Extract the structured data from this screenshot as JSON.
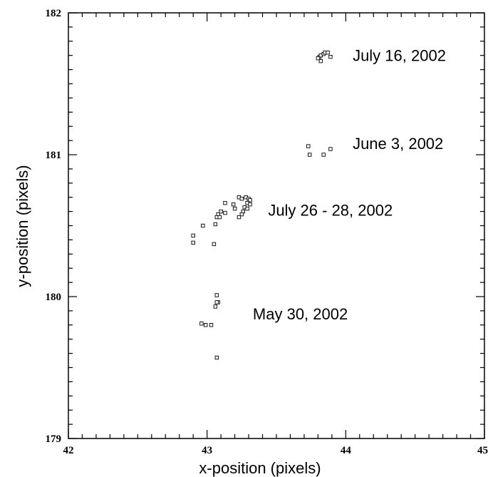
{
  "chart_data": {
    "type": "scatter",
    "title": "",
    "xlabel": "x-position (pixels)",
    "ylabel": "y-position (pixels)",
    "xlim": [
      42,
      45
    ],
    "ylim": [
      179,
      182
    ],
    "x_ticks": [
      42,
      43,
      44,
      45
    ],
    "x_tick_labels": [
      "42",
      "43",
      "44",
      "45"
    ],
    "y_ticks": [
      179,
      180,
      181,
      182
    ],
    "y_tick_labels": [
      "179",
      "180",
      "181",
      "182"
    ],
    "grid": false,
    "marker": "open-square",
    "points": [
      [
        43.81,
        181.69
      ],
      [
        43.82,
        181.7
      ],
      [
        43.84,
        181.71
      ],
      [
        43.85,
        181.72
      ],
      [
        43.87,
        181.72
      ],
      [
        43.89,
        181.69
      ],
      [
        43.82,
        181.66
      ],
      [
        43.8,
        181.68
      ],
      [
        43.73,
        181.06
      ],
      [
        43.74,
        181.0
      ],
      [
        43.84,
        181.0
      ],
      [
        43.89,
        181.04
      ],
      [
        43.23,
        180.7
      ],
      [
        43.25,
        180.69
      ],
      [
        43.28,
        180.7
      ],
      [
        43.3,
        180.69
      ],
      [
        43.31,
        180.68
      ],
      [
        43.29,
        180.66
      ],
      [
        43.31,
        180.65
      ],
      [
        43.27,
        180.63
      ],
      [
        43.29,
        180.62
      ],
      [
        43.26,
        180.6
      ],
      [
        43.25,
        180.58
      ],
      [
        43.23,
        180.56
      ],
      [
        43.19,
        180.65
      ],
      [
        43.2,
        180.62
      ],
      [
        43.13,
        180.66
      ],
      [
        43.1,
        180.6
      ],
      [
        43.13,
        180.59
      ],
      [
        43.08,
        180.58
      ],
      [
        43.07,
        180.56
      ],
      [
        43.09,
        180.56
      ],
      [
        43.06,
        180.51
      ],
      [
        42.97,
        180.5
      ],
      [
        42.9,
        180.43
      ],
      [
        42.9,
        180.38
      ],
      [
        43.05,
        180.37
      ],
      [
        43.07,
        180.01
      ],
      [
        43.08,
        179.96
      ],
      [
        43.07,
        179.96
      ],
      [
        43.06,
        179.93
      ],
      [
        42.96,
        179.81
      ],
      [
        42.99,
        179.8
      ],
      [
        43.03,
        179.8
      ],
      [
        43.07,
        179.57
      ]
    ],
    "annotations": [
      {
        "text": "July 16, 2002",
        "x": 44.05,
        "y": 181.66
      },
      {
        "text": "June 3, 2002",
        "x": 44.05,
        "y": 181.04
      },
      {
        "text": "July 26 - 28, 2002",
        "x": 43.44,
        "y": 180.57
      },
      {
        "text": "May 30, 2002",
        "x": 43.33,
        "y": 179.84
      }
    ]
  }
}
